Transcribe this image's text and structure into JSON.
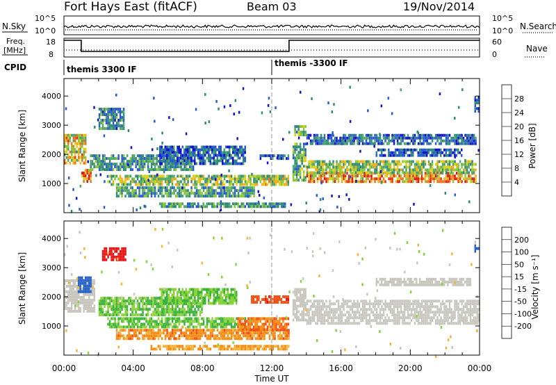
{
  "header": {
    "title": "Fort Hays East (fitACF)",
    "beam": "Beam 03",
    "date": "19/Nov/2014"
  },
  "strips": {
    "nsky_label": "N.Sky",
    "freq_label_line1": "Freq.",
    "freq_label_line2": "[MHz]",
    "cpid_label": "CPID",
    "nsearch_label": "N.Search",
    "nave_label": "Nave",
    "nsky_ticks": [
      "10^5",
      "10^0"
    ],
    "nsearch_ticks": [
      "10^5",
      "10^0"
    ],
    "freq_ticks": [
      "18",
      "8"
    ],
    "nave_ticks": [
      "60",
      "0"
    ],
    "freq_profile": [
      {
        "t": 0.0,
        "mhz": 18
      },
      {
        "t": 1.0,
        "mhz": 18
      },
      {
        "t": 1.0,
        "mhz": 10
      },
      {
        "t": 13.0,
        "mhz": 10
      },
      {
        "t": 13.0,
        "mhz": 18
      },
      {
        "t": 24.0,
        "mhz": 18
      }
    ],
    "cpid_segments": [
      {
        "start": 0.0,
        "label": "themis 3300 IF"
      },
      {
        "start": 12.0,
        "label": "themis -3300 IF"
      }
    ]
  },
  "chart_data": [
    {
      "type": "heatmap",
      "name": "power",
      "ylabel": "Slant Range [km]",
      "xlim": [
        0,
        24
      ],
      "ylim": [
        0,
        4600
      ],
      "yticks": [
        1000,
        2000,
        3000,
        4000
      ],
      "colorbar": {
        "label": "Power [dB]",
        "ticks": [
          "4",
          "8",
          "12",
          "16",
          "20",
          "24",
          "28"
        ],
        "colors": [
          "#1414c8",
          "#2a5ad2",
          "#2f8a7a",
          "#4fa86a",
          "#8cc63a",
          "#d9d21c",
          "#f5a81c",
          "#f07020",
          "#e63214",
          "#dc1414"
        ]
      },
      "regions": [
        {
          "t0": 0.0,
          "t1": 1.3,
          "r0": 1700,
          "r1": 2700,
          "v": 18
        },
        {
          "t0": 1.0,
          "t1": 1.6,
          "r0": 1100,
          "r1": 1500,
          "v": 22
        },
        {
          "t0": 1.5,
          "t1": 7.5,
          "r0": 1500,
          "r1": 2000,
          "v": 9
        },
        {
          "t0": 2.5,
          "t1": 11.0,
          "r0": 1000,
          "r1": 1300,
          "v": 14
        },
        {
          "t0": 3.0,
          "t1": 11.0,
          "r0": 600,
          "r1": 900,
          "v": 10
        },
        {
          "t0": 5.5,
          "t1": 12.8,
          "r0": 200,
          "r1": 350,
          "v": 9
        },
        {
          "t0": 2.0,
          "t1": 3.5,
          "r0": 2900,
          "r1": 3600,
          "v": 8
        },
        {
          "t0": 5.5,
          "t1": 10.5,
          "r0": 1700,
          "r1": 2300,
          "v": 6
        },
        {
          "t0": 11.0,
          "t1": 13.0,
          "r0": 1000,
          "r1": 1300,
          "v": 16
        },
        {
          "t0": 11.3,
          "t1": 13.0,
          "r0": 1900,
          "r1": 2000,
          "v": 6
        },
        {
          "t0": 13.2,
          "t1": 14.0,
          "r0": 1100,
          "r1": 2400,
          "v": 12
        },
        {
          "t0": 13.3,
          "t1": 14.0,
          "r0": 2700,
          "r1": 3000,
          "v": 12
        },
        {
          "t0": 14.0,
          "t1": 23.8,
          "r0": 1100,
          "r1": 1400,
          "v": 22
        },
        {
          "t0": 14.0,
          "t1": 23.8,
          "r0": 1400,
          "r1": 1800,
          "v": 14
        },
        {
          "t0": 14.0,
          "t1": 23.8,
          "r0": 2400,
          "r1": 2700,
          "v": 6
        },
        {
          "t0": 18.0,
          "t1": 23.0,
          "r0": 2000,
          "r1": 2200,
          "v": 5
        },
        {
          "t0": 23.7,
          "t1": 24.0,
          "r0": 3500,
          "r1": 4000,
          "v": 5
        }
      ]
    },
    {
      "type": "heatmap",
      "name": "velocity",
      "ylabel": "Slant Range [km]",
      "xlabel": "Time UT",
      "xlim": [
        0,
        24
      ],
      "ylim": [
        0,
        4600
      ],
      "yticks": [
        1000,
        2000,
        3000,
        4000
      ],
      "xticks": [
        "00:00",
        "04:00",
        "08:00",
        "12:00",
        "16:00",
        "20:00",
        "00:00"
      ],
      "colorbar": {
        "label": "Velocity [m s⁻¹]",
        "ticks": [
          "-200",
          "-100",
          "-50",
          "-15",
          "15",
          "50",
          "100",
          "200"
        ],
        "colors": [
          "#e61414",
          "#f55014",
          "#f58c14",
          "#f5b43c",
          "#c8c8c0",
          "#8cd23c",
          "#3cb43c",
          "#3c9640",
          "#2864c8",
          "#1428c8"
        ]
      },
      "regions": [
        {
          "t0": 0.0,
          "t1": 1.8,
          "r0": 1500,
          "r1": 2600,
          "v": 0
        },
        {
          "t0": 0.8,
          "t1": 1.6,
          "r0": 2200,
          "r1": 2700,
          "v": 150
        },
        {
          "t0": 2.2,
          "t1": 3.6,
          "r0": 3300,
          "r1": 3700,
          "v": -150
        },
        {
          "t0": 2.0,
          "t1": 8.0,
          "r0": 1400,
          "r1": 2000,
          "v": 30
        },
        {
          "t0": 5.5,
          "t1": 10.0,
          "r0": 1800,
          "r1": 2300,
          "v": 30
        },
        {
          "t0": 2.5,
          "t1": 10.5,
          "r0": 1000,
          "r1": 1300,
          "v": 30
        },
        {
          "t0": 3.0,
          "t1": 13.0,
          "r0": 600,
          "r1": 900,
          "v": -40
        },
        {
          "t0": 5.0,
          "t1": 13.0,
          "r0": 200,
          "r1": 350,
          "v": -30
        },
        {
          "t0": 10.0,
          "t1": 13.0,
          "r0": 900,
          "r1": 1300,
          "v": -45
        },
        {
          "t0": 10.8,
          "t1": 13.0,
          "r0": 1850,
          "r1": 2050,
          "v": -80
        },
        {
          "t0": 13.2,
          "t1": 14.0,
          "r0": 1200,
          "r1": 2300,
          "v": 0
        },
        {
          "t0": 14.0,
          "t1": 24.0,
          "r0": 1100,
          "r1": 1900,
          "v": 0
        },
        {
          "t0": 18.0,
          "t1": 23.5,
          "r0": 2400,
          "r1": 2650,
          "v": 0
        },
        {
          "t0": 23.7,
          "t1": 24.0,
          "r0": 3600,
          "r1": 3800,
          "v": 150
        }
      ]
    }
  ]
}
